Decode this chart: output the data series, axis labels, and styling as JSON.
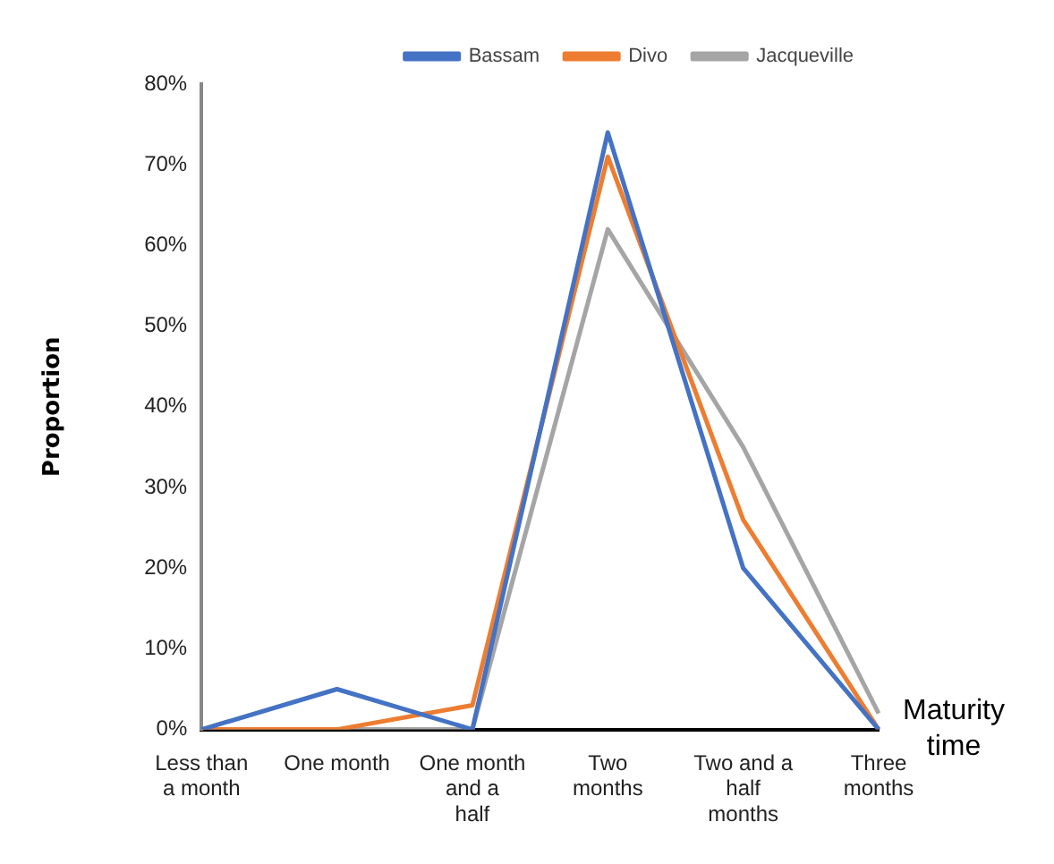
{
  "chart_data": {
    "type": "line",
    "xlabel": "Maturity time",
    "ylabel": "Proportion",
    "categories": [
      "Less than a month",
      "One month",
      "One month and a half",
      "Two months",
      "Two and a half months",
      "Three months"
    ],
    "series": [
      {
        "name": "Bassam",
        "color": "#4472c4",
        "values": [
          0,
          5,
          0,
          74,
          20,
          0
        ]
      },
      {
        "name": "Divo",
        "color": "#ed7d31",
        "values": [
          0,
          0,
          3,
          71,
          26,
          0
        ]
      },
      {
        "name": "Jacqueville",
        "color": "#a5a5a5",
        "values": [
          0,
          0,
          0,
          62,
          35,
          2
        ]
      }
    ],
    "ylim": [
      0,
      80
    ],
    "yticks": [
      {
        "value": 0,
        "label": "0%"
      },
      {
        "value": 10,
        "label": "10%"
      },
      {
        "value": 20,
        "label": "20%"
      },
      {
        "value": 30,
        "label": "30%"
      },
      {
        "value": 40,
        "label": "40%"
      },
      {
        "value": 50,
        "label": "50%"
      },
      {
        "value": 60,
        "label": "60%"
      },
      {
        "value": 70,
        "label": "70%"
      },
      {
        "value": 80,
        "label": "80%"
      }
    ],
    "grid": false,
    "legend": "top right",
    "marker": "none",
    "line_style": "solid"
  }
}
